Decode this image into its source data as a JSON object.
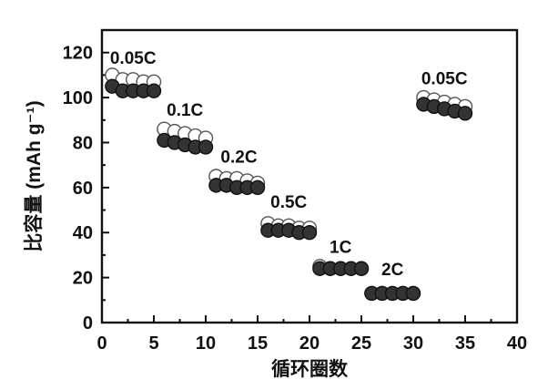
{
  "chart_data": {
    "type": "scatter",
    "xlabel": "循环圈数",
    "ylabel": "比容量 (mAh g⁻¹)",
    "xlim": [
      0,
      40
    ],
    "ylim": [
      0,
      130
    ],
    "xticks": [
      0,
      5,
      10,
      15,
      20,
      25,
      30,
      35,
      40
    ],
    "yticks": [
      0,
      20,
      40,
      60,
      80,
      100,
      120
    ],
    "grid": false,
    "series": [
      {
        "marker": "open-circle",
        "color": "#ffffff",
        "x": [
          1,
          2,
          3,
          4,
          5,
          6,
          7,
          8,
          9,
          10,
          11,
          12,
          13,
          14,
          15,
          16,
          17,
          18,
          19,
          20,
          21,
          22,
          23,
          24,
          25,
          26,
          27,
          28,
          29,
          30,
          31,
          32,
          33,
          34,
          35
        ],
        "y": [
          110,
          108,
          108,
          107,
          107,
          86,
          85,
          84,
          83,
          82,
          65,
          64,
          64,
          63,
          62,
          44,
          43,
          43,
          42,
          42,
          25,
          24,
          24,
          24,
          24,
          13,
          13,
          13,
          13,
          13,
          100,
          99,
          98,
          97,
          96
        ]
      },
      {
        "marker": "filled-circle",
        "color": "#333333",
        "x": [
          1,
          2,
          3,
          4,
          5,
          6,
          7,
          8,
          9,
          10,
          11,
          12,
          13,
          14,
          15,
          16,
          17,
          18,
          19,
          20,
          21,
          22,
          23,
          24,
          25,
          26,
          27,
          28,
          29,
          30,
          31,
          32,
          33,
          34,
          35
        ],
        "y": [
          105,
          103,
          103,
          103,
          103,
          81,
          80,
          79,
          78,
          78,
          61,
          61,
          60,
          60,
          60,
          41,
          41,
          41,
          40,
          40,
          24,
          24,
          24,
          24,
          24,
          13,
          13,
          13,
          13,
          13,
          97,
          96,
          95,
          94,
          93
        ]
      }
    ],
    "annotations": [
      {
        "text": "0.05C",
        "x": 3.0,
        "y": 115
      },
      {
        "text": "0.1C",
        "x": 8.0,
        "y": 92
      },
      {
        "text": "0.2C",
        "x": 13.2,
        "y": 71
      },
      {
        "text": "0.5C",
        "x": 18.0,
        "y": 51
      },
      {
        "text": "1C",
        "x": 23.0,
        "y": 31
      },
      {
        "text": "2C",
        "x": 28.0,
        "y": 21
      },
      {
        "text": "0.05C",
        "x": 33.0,
        "y": 106
      }
    ]
  }
}
